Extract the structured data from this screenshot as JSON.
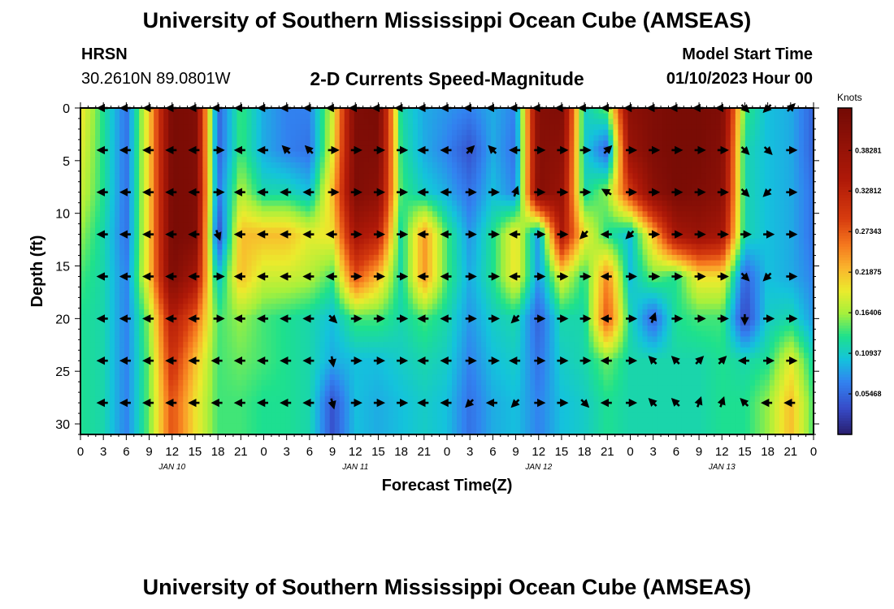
{
  "header": {
    "title": "University of Southern Mississippi Ocean Cube (AMSEAS)",
    "station": "HRSN",
    "coordinates": "30.2610N  89.0801W",
    "subtitle": "2-D Currents Speed-Magnitude",
    "model_start_label": "Model Start Time",
    "model_start_value": "01/10/2023 Hour 00",
    "footer_title": "University of Southern Mississippi Ocean Cube (AMSEAS)"
  },
  "chart_data": {
    "type": "heatmap",
    "title": "2-D Currents Speed-Magnitude",
    "xlabel": "Forecast Time(Z)",
    "ylabel": "Depth (ft)",
    "x_range_hours": [
      0,
      96
    ],
    "y_range_ft": [
      0,
      31
    ],
    "x_tick_labels": [
      "0",
      "3",
      "6",
      "9",
      "12",
      "15",
      "18",
      "21",
      "0",
      "3",
      "6",
      "9",
      "12",
      "15",
      "18",
      "21",
      "0",
      "3",
      "6",
      "9",
      "12",
      "15",
      "18",
      "21",
      "0",
      "3",
      "6",
      "9",
      "12",
      "15",
      "18",
      "21",
      "0"
    ],
    "y_tick_labels": [
      "0",
      "5",
      "10",
      "15",
      "20",
      "25",
      "30"
    ],
    "y_tick_values": [
      0,
      5,
      10,
      15,
      20,
      25,
      30
    ],
    "day_labels": [
      {
        "label": "JAN 10",
        "hour": 12
      },
      {
        "label": "JAN 11",
        "hour": 36
      },
      {
        "label": "JAN 12",
        "hour": 60
      },
      {
        "label": "JAN 13",
        "hour": 84
      }
    ],
    "colorbar": {
      "units": "Knots",
      "range": [
        0,
        0.44
      ],
      "tick_labels": [
        "0.05468",
        "0.10937",
        "0.16406",
        "0.21875",
        "0.27343",
        "0.32812",
        "0.38281"
      ],
      "tick_values": [
        0.05468,
        0.10937,
        0.16406,
        0.21875,
        0.27343,
        0.32812,
        0.38281
      ]
    },
    "depth_levels_ft": [
      0,
      4,
      8,
      12,
      16,
      20,
      24,
      28
    ],
    "time_hours": [
      0,
      3,
      6,
      9,
      12,
      15,
      18,
      21,
      24,
      27,
      30,
      33,
      36,
      39,
      42,
      45,
      48,
      51,
      54,
      57,
      60,
      63,
      66,
      69,
      72,
      75,
      78,
      81,
      84,
      87,
      90,
      93,
      96
    ],
    "speed_knots": [
      [
        0.2,
        0.13,
        0.06,
        0.21,
        0.43,
        0.42,
        0.05,
        0.14,
        0.09,
        0.07,
        0.07,
        0.18,
        0.42,
        0.43,
        0.12,
        0.09,
        0.08,
        0.07,
        0.09,
        0.07,
        0.41,
        0.42,
        0.11,
        0.15,
        0.4,
        0.42,
        0.43,
        0.43,
        0.42,
        0.14,
        0.1,
        0.09,
        0.05
      ],
      [
        0.19,
        0.13,
        0.06,
        0.21,
        0.43,
        0.42,
        0.05,
        0.14,
        0.09,
        0.07,
        0.06,
        0.19,
        0.42,
        0.42,
        0.13,
        0.09,
        0.07,
        0.04,
        0.09,
        0.06,
        0.41,
        0.4,
        0.11,
        0.05,
        0.38,
        0.42,
        0.43,
        0.43,
        0.41,
        0.12,
        0.1,
        0.09,
        0.05
      ],
      [
        0.18,
        0.13,
        0.06,
        0.21,
        0.43,
        0.42,
        0.06,
        0.17,
        0.12,
        0.12,
        0.1,
        0.22,
        0.42,
        0.4,
        0.14,
        0.11,
        0.09,
        0.06,
        0.1,
        0.07,
        0.41,
        0.38,
        0.12,
        0.16,
        0.3,
        0.4,
        0.43,
        0.42,
        0.4,
        0.12,
        0.1,
        0.09,
        0.06
      ],
      [
        0.16,
        0.12,
        0.06,
        0.21,
        0.43,
        0.42,
        0.03,
        0.22,
        0.22,
        0.22,
        0.19,
        0.2,
        0.36,
        0.33,
        0.12,
        0.24,
        0.14,
        0.08,
        0.13,
        0.2,
        0.08,
        0.35,
        0.2,
        0.13,
        0.1,
        0.22,
        0.36,
        0.38,
        0.36,
        0.12,
        0.1,
        0.09,
        0.06
      ],
      [
        0.14,
        0.12,
        0.07,
        0.21,
        0.42,
        0.36,
        0.1,
        0.22,
        0.18,
        0.18,
        0.17,
        0.14,
        0.28,
        0.22,
        0.12,
        0.24,
        0.14,
        0.09,
        0.13,
        0.2,
        0.08,
        0.19,
        0.13,
        0.25,
        0.1,
        0.15,
        0.13,
        0.2,
        0.2,
        0.05,
        0.1,
        0.09,
        0.07
      ],
      [
        0.13,
        0.12,
        0.07,
        0.16,
        0.34,
        0.27,
        0.14,
        0.16,
        0.14,
        0.13,
        0.12,
        0.1,
        0.14,
        0.14,
        0.12,
        0.14,
        0.12,
        0.08,
        0.11,
        0.12,
        0.05,
        0.12,
        0.12,
        0.28,
        0.12,
        0.05,
        0.13,
        0.14,
        0.14,
        0.03,
        0.11,
        0.12,
        0.08
      ],
      [
        0.13,
        0.12,
        0.07,
        0.15,
        0.31,
        0.22,
        0.14,
        0.15,
        0.14,
        0.13,
        0.12,
        0.09,
        0.1,
        0.1,
        0.11,
        0.12,
        0.11,
        0.07,
        0.1,
        0.11,
        0.06,
        0.11,
        0.12,
        0.15,
        0.12,
        0.12,
        0.12,
        0.12,
        0.13,
        0.12,
        0.13,
        0.19,
        0.12
      ],
      [
        0.13,
        0.12,
        0.07,
        0.15,
        0.28,
        0.2,
        0.14,
        0.14,
        0.13,
        0.13,
        0.12,
        0.04,
        0.1,
        0.09,
        0.1,
        0.11,
        0.1,
        0.06,
        0.09,
        0.1,
        0.07,
        0.1,
        0.11,
        0.13,
        0.12,
        0.12,
        0.12,
        0.12,
        0.13,
        0.13,
        0.16,
        0.22,
        0.14
      ]
    ],
    "arrow_direction_deg": [
      [
        270,
        270,
        270,
        270,
        270,
        270,
        270,
        270,
        270,
        270,
        270,
        270,
        270,
        270,
        270,
        270,
        270,
        270,
        270,
        270,
        270,
        270,
        270,
        270,
        270,
        270,
        270,
        270,
        270,
        135,
        225,
        45,
        270
      ],
      [
        270,
        270,
        270,
        270,
        270,
        270,
        90,
        270,
        270,
        315,
        315,
        90,
        90,
        90,
        90,
        270,
        270,
        45,
        315,
        270,
        90,
        90,
        90,
        45,
        90,
        90,
        90,
        90,
        90,
        135,
        135,
        90,
        225
      ],
      [
        270,
        270,
        270,
        270,
        270,
        270,
        90,
        270,
        270,
        270,
        270,
        90,
        90,
        90,
        90,
        270,
        270,
        90,
        90,
        20,
        90,
        90,
        90,
        300,
        90,
        90,
        90,
        90,
        90,
        135,
        225,
        90,
        90
      ],
      [
        270,
        270,
        270,
        270,
        270,
        270,
        160,
        270,
        270,
        270,
        270,
        270,
        90,
        90,
        90,
        270,
        270,
        90,
        90,
        270,
        90,
        90,
        225,
        270,
        225,
        90,
        90,
        90,
        90,
        90,
        90,
        90,
        90
      ],
      [
        270,
        270,
        270,
        270,
        270,
        270,
        90,
        270,
        270,
        270,
        270,
        270,
        90,
        90,
        90,
        270,
        270,
        90,
        90,
        270,
        90,
        90,
        90,
        270,
        90,
        90,
        90,
        90,
        90,
        135,
        225,
        90,
        90
      ],
      [
        270,
        270,
        270,
        270,
        270,
        270,
        90,
        270,
        270,
        270,
        270,
        135,
        90,
        90,
        90,
        270,
        270,
        90,
        90,
        225,
        90,
        90,
        90,
        270,
        90,
        20,
        90,
        90,
        90,
        180,
        90,
        90,
        90
      ],
      [
        270,
        270,
        270,
        270,
        270,
        270,
        270,
        270,
        270,
        270,
        270,
        170,
        90,
        90,
        90,
        270,
        270,
        90,
        90,
        270,
        90,
        90,
        90,
        270,
        90,
        315,
        315,
        45,
        45,
        270,
        90,
        90,
        90
      ],
      [
        270,
        270,
        270,
        270,
        270,
        270,
        270,
        270,
        270,
        270,
        270,
        165,
        90,
        90,
        90,
        270,
        270,
        225,
        270,
        225,
        90,
        90,
        135,
        270,
        90,
        315,
        315,
        20,
        20,
        315,
        270,
        270,
        270
      ]
    ]
  }
}
